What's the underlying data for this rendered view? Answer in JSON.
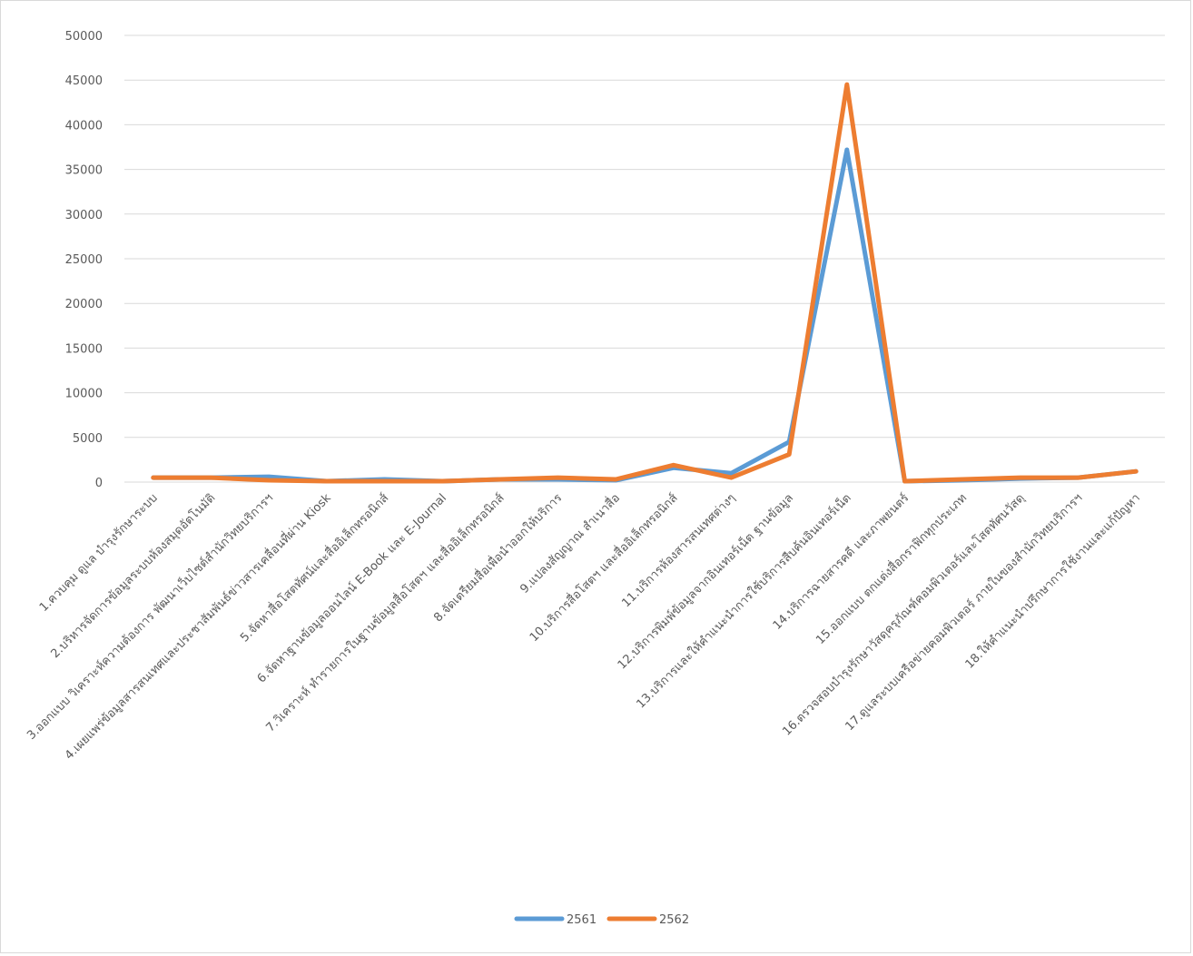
{
  "chart_data": {
    "type": "line",
    "title": "",
    "xlabel": "",
    "ylabel": "",
    "ylim": [
      0,
      50000
    ],
    "yticks": [
      0,
      5000,
      10000,
      15000,
      20000,
      25000,
      30000,
      35000,
      40000,
      45000,
      50000
    ],
    "grid": true,
    "legend_position": "bottom",
    "categories": [
      "1.ควบคุม ดูแล บำรุงรักษาระบบ",
      "2.บริหารจัดการข้อมูลระบบห้องสมุดอัตโนมัติ",
      "3.ออกแบบ วิเคราะห์ความต้องการ พัฒนาเว็บไซต์สำนักวิทยบริการฯ",
      "4.เผยแพร่ข้อมูลสารสนเทศและประชาสัมพันธ์ข่าวสารเคลื่อนที่ผ่าน Kiosk",
      "5.จัดหาสื่อโสตทัศน์และสื่ออิเล็กทรอนิกส์",
      "6.จัดหาฐานข้อมูลออนไลน์ E-Book และ E-Journal",
      "7.วิเคราะห์ ทำรายการในฐานข้อมูลสื่อโสตฯ และสื่ออิเล็กทรอนิกส์",
      "8.จัดเตรียมสื่อเพื่อนำออกให้บริการ",
      "9.แปลงสัญญาณ สำเนาสื่อ",
      "10.บริการสื่อโสตฯ และสื่ออิเล็กทรอนิกส์",
      "11.บริการห้องสารสนเทศต่างๆ",
      "12.บริการพิมพ์ข้อมูลจากอินเทอร์เน็ต ฐานข้อมูล",
      "13.บริการและให้คำแนะนำการใช้บริการสืบค้นอินเทอร์เน็ต",
      "14.บริการฉายสารคดี และภาพยนตร์",
      "15.ออกแบบ ตกแต่งสื่อกราฟิกทุกประเภท",
      "16.ตรวจสอบบำรุงรักษาวัสดุครุภัณฑ์คอมพิวเตอร์และโสตทัศนวัสดุ",
      "17.ดูแลระบบเครือข่ายคอมพิวเตอร์ ภายในของสำนักวิทยบริการฯ",
      "18.ให้คำแนะนำปรึกษาการใช้งานและแก้ปัญหา"
    ],
    "series": [
      {
        "name": "2561",
        "color": "#5b9bd5",
        "values": [
          500,
          500,
          600,
          100,
          300,
          100,
          300,
          300,
          200,
          1600,
          1000,
          4500,
          37200,
          100,
          200,
          400,
          500,
          1200
        ]
      },
      {
        "name": "2562",
        "color": "#ed7d31",
        "values": [
          500,
          500,
          200,
          100,
          100,
          100,
          300,
          500,
          300,
          1900,
          500,
          3100,
          44500,
          100,
          300,
          500,
          500,
          1200
        ]
      }
    ]
  }
}
